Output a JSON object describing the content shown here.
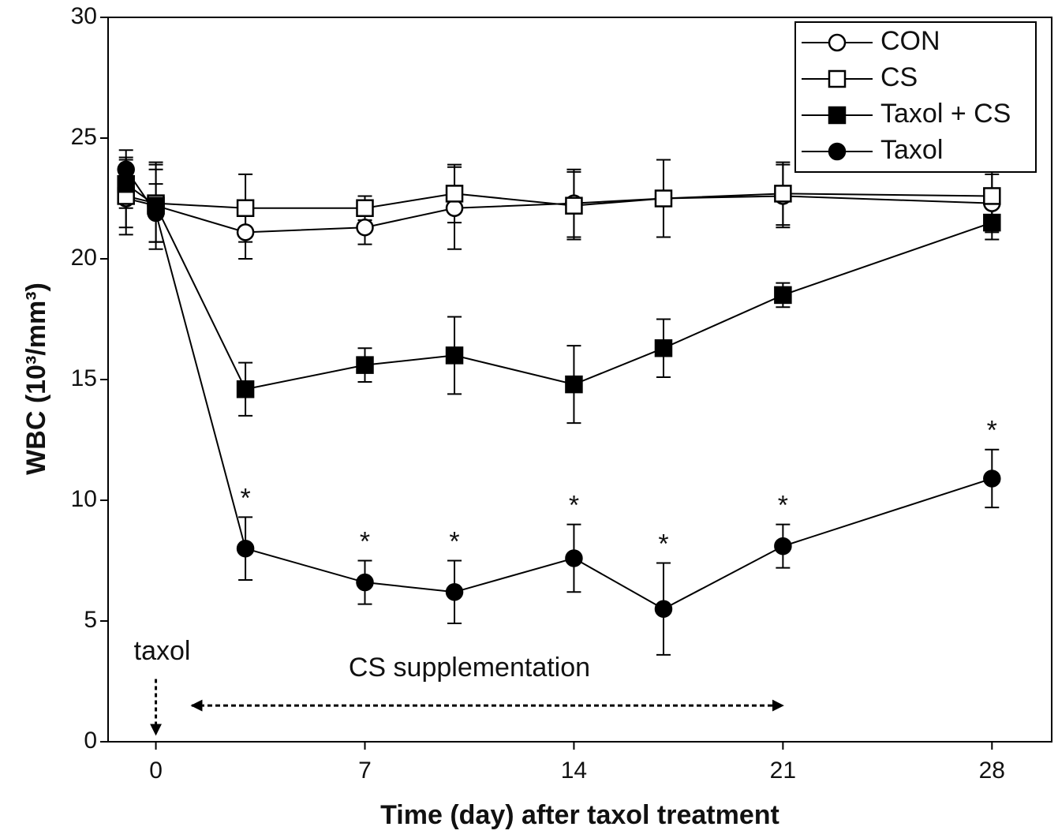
{
  "chart_data": {
    "type": "line",
    "xlabel": "Time (day) after taxol treatment",
    "ylabel": "WBC (10³/mm³)",
    "x": [
      -1,
      0,
      3,
      7,
      10,
      14,
      17,
      21,
      28
    ],
    "xlim": [
      -1.6,
      30
    ],
    "ylim": [
      0,
      30
    ],
    "xticks": [
      0,
      7,
      14,
      21,
      28
    ],
    "yticks": [
      0,
      5,
      10,
      15,
      20,
      25,
      30
    ],
    "legend": "upper right",
    "significance_marker": "*",
    "annotations": [
      "taxol",
      "CS supplementation"
    ],
    "series": [
      {
        "name": "CON",
        "color": "#000000",
        "marker": "circle",
        "filled": false,
        "values": [
          22.5,
          22.2,
          21.1,
          21.3,
          22.1,
          22.3,
          22.5,
          22.6,
          22.3
        ],
        "errors": [
          1.2,
          1.5,
          1.1,
          0.7,
          1.7,
          1.4,
          1.6,
          1.3,
          1.2
        ]
      },
      {
        "name": "CS",
        "color": "#000000",
        "marker": "square",
        "filled": false,
        "values": [
          22.6,
          22.3,
          22.1,
          22.1,
          22.7,
          22.2,
          22.5,
          22.7,
          22.6
        ],
        "errors": [
          1.6,
          1.6,
          1.4,
          0.5,
          1.2,
          1.4,
          1.6,
          1.3,
          1.1
        ]
      },
      {
        "name": "Taxol + CS",
        "color": "#000000",
        "marker": "square",
        "filled": true,
        "values": [
          23.1,
          22.2,
          14.6,
          15.6,
          16.0,
          14.8,
          16.3,
          18.5,
          21.5
        ],
        "errors": [
          1.0,
          1.8,
          1.1,
          0.7,
          1.6,
          1.6,
          1.2,
          0.5,
          0.7
        ]
      },
      {
        "name": "Taxol",
        "color": "#000000",
        "marker": "circle",
        "filled": true,
        "values": [
          23.7,
          21.9,
          8.0,
          6.6,
          6.2,
          7.6,
          5.5,
          8.1,
          10.9
        ],
        "errors": [
          0.8,
          1.2,
          1.3,
          0.9,
          1.3,
          1.4,
          1.9,
          0.9,
          1.2
        ],
        "significant": [
          false,
          false,
          true,
          true,
          true,
          true,
          true,
          true,
          true
        ]
      }
    ]
  }
}
